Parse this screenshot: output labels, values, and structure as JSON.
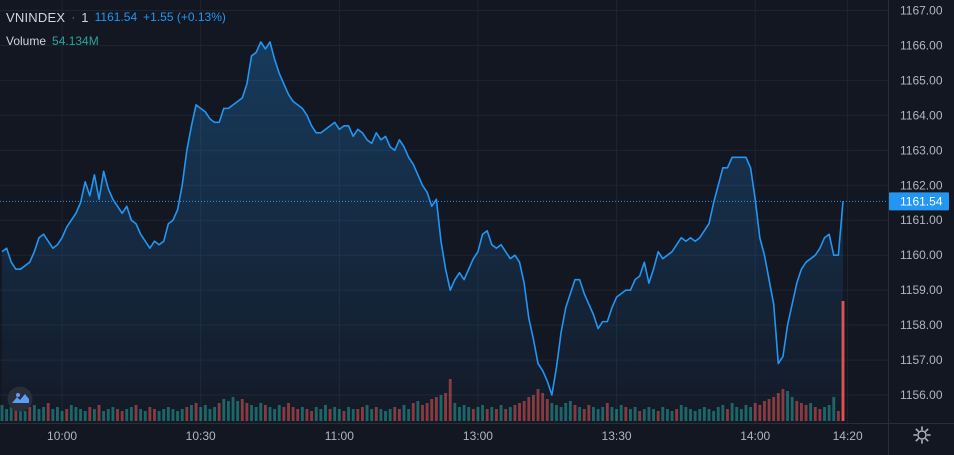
{
  "legend": {
    "symbol": "VNINDEX",
    "dot": "·",
    "interval": "1",
    "last": "1161.54",
    "change": "+1.55 (+0.13%)",
    "volume_label": "Volume",
    "volume_value": "54.134M"
  },
  "colors": {
    "background": "#131722",
    "grid": "#1f2433",
    "line": "#2196f3",
    "up_volume": "#26a69a",
    "down_volume": "#ef5350",
    "axis_text": "#b2b5be",
    "price_tag_bg": "#2196f3"
  },
  "icons": {
    "settings": "gear-icon",
    "logo": "tradingview-logo-icon"
  },
  "chart_data": {
    "type": "line",
    "symbol": "VNINDEX",
    "ylim": [
      1155.2,
      1167.3
    ],
    "y_ticks": [
      "1167.00",
      "1166.00",
      "1165.00",
      "1164.00",
      "1163.00",
      "1162.00",
      "1161.00",
      "1160.00",
      "1159.00",
      "1158.00",
      "1157.00",
      "1156.00"
    ],
    "y_tick_values": [
      1167,
      1166,
      1165,
      1164,
      1163,
      1162,
      1161,
      1160,
      1159,
      1158,
      1157,
      1156
    ],
    "x_ticks": [
      {
        "label": "10:00",
        "index": 13
      },
      {
        "label": "10:30",
        "index": 43
      },
      {
        "label": "11:00",
        "index": 73
      },
      {
        "label": "13:00",
        "index": 103
      },
      {
        "label": "13:30",
        "index": 133
      },
      {
        "label": "14:00",
        "index": 163
      },
      {
        "label": "14:20",
        "index": 183
      }
    ],
    "last_price_label": "1161.54",
    "last_price": 1161.54,
    "grid": true,
    "series": [
      {
        "values": [
          1160.1,
          1160.2,
          1159.8,
          1159.6,
          1159.6,
          1159.7,
          1159.8,
          1160.1,
          1160.5,
          1160.6,
          1160.4,
          1160.2,
          1160.3,
          1160.5,
          1160.8,
          1161.0,
          1161.2,
          1161.5,
          1162.1,
          1161.7,
          1162.3,
          1161.6,
          1162.4,
          1161.9,
          1161.6,
          1161.4,
          1161.2,
          1161.4,
          1161.0,
          1160.9,
          1160.6,
          1160.4,
          1160.2,
          1160.4,
          1160.3,
          1160.4,
          1160.9,
          1161.0,
          1161.3,
          1162.0,
          1163.0,
          1163.7,
          1164.3,
          1164.2,
          1164.1,
          1163.9,
          1163.8,
          1163.8,
          1164.2,
          1164.2,
          1164.3,
          1164.4,
          1164.5,
          1164.9,
          1165.7,
          1165.8,
          1166.1,
          1165.9,
          1166.1,
          1165.6,
          1165.2,
          1164.9,
          1164.6,
          1164.4,
          1164.3,
          1164.2,
          1164.0,
          1163.7,
          1163.5,
          1163.5,
          1163.6,
          1163.7,
          1163.8,
          1163.6,
          1163.7,
          1163.7,
          1163.4,
          1163.6,
          1163.5,
          1163.3,
          1163.2,
          1163.5,
          1163.3,
          1163.4,
          1163.1,
          1163.0,
          1163.3,
          1163.1,
          1162.8,
          1162.6,
          1162.3,
          1162.0,
          1161.8,
          1161.4,
          1161.6,
          1160.4,
          1159.6,
          1159.0,
          1159.3,
          1159.5,
          1159.3,
          1159.6,
          1159.9,
          1160.1,
          1160.6,
          1160.7,
          1160.3,
          1160.2,
          1160.3,
          1160.1,
          1159.9,
          1160.0,
          1159.8,
          1159.2,
          1158.2,
          1157.6,
          1156.9,
          1156.7,
          1156.4,
          1156.0,
          1156.8,
          1157.8,
          1158.5,
          1158.9,
          1159.3,
          1159.3,
          1158.9,
          1158.6,
          1158.3,
          1157.9,
          1158.1,
          1158.1,
          1158.5,
          1158.8,
          1158.9,
          1159.0,
          1159.0,
          1159.3,
          1159.4,
          1159.8,
          1159.2,
          1159.6,
          1160.1,
          1159.9,
          1160.0,
          1160.1,
          1160.3,
          1160.5,
          1160.4,
          1160.5,
          1160.4,
          1160.5,
          1160.7,
          1160.9,
          1161.5,
          1162.0,
          1162.5,
          1162.5,
          1162.8,
          1162.8,
          1162.8,
          1162.8,
          1162.5,
          1161.6,
          1160.5,
          1160.0,
          1159.3,
          1158.6,
          1156.9,
          1157.1,
          1158.0,
          1158.6,
          1159.2,
          1159.6,
          1159.8,
          1159.9,
          1160.0,
          1160.2,
          1160.5,
          1160.6,
          1160.0,
          1160.0,
          1161.54
        ]
      }
    ],
    "volume": {
      "values": [
        0.8,
        0.6,
        0.7,
        0.9,
        0.6,
        0.5,
        0.7,
        0.8,
        0.6,
        0.7,
        0.9,
        0.6,
        0.7,
        0.5,
        0.6,
        0.8,
        0.7,
        0.6,
        0.5,
        0.7,
        0.6,
        0.8,
        0.5,
        0.6,
        0.7,
        0.6,
        0.5,
        0.6,
        0.7,
        0.8,
        0.6,
        0.5,
        0.7,
        0.6,
        0.5,
        0.6,
        0.7,
        0.6,
        0.5,
        0.6,
        0.7,
        0.8,
        0.9,
        0.7,
        0.8,
        0.6,
        0.7,
        0.9,
        1.1,
        1.0,
        1.2,
        1.0,
        1.1,
        0.9,
        0.8,
        0.7,
        0.9,
        0.8,
        0.7,
        0.6,
        0.8,
        0.7,
        0.9,
        0.7,
        0.6,
        0.7,
        0.6,
        0.5,
        0.7,
        0.6,
        0.8,
        0.6,
        0.7,
        0.6,
        0.5,
        0.7,
        0.6,
        0.6,
        0.7,
        0.8,
        0.6,
        0.7,
        0.6,
        0.5,
        0.6,
        0.7,
        0.6,
        0.8,
        0.6,
        0.9,
        1.0,
        0.8,
        0.9,
        1.1,
        1.2,
        1.3,
        1.4,
        2.1,
        0.9,
        0.7,
        0.8,
        0.7,
        0.6,
        0.7,
        0.8,
        0.6,
        0.7,
        0.6,
        0.8,
        0.6,
        0.7,
        0.8,
        0.9,
        1.0,
        1.2,
        1.3,
        1.6,
        1.4,
        1.1,
        0.9,
        0.8,
        0.7,
        0.9,
        1.0,
        0.8,
        0.7,
        0.6,
        0.8,
        0.7,
        0.6,
        0.7,
        0.9,
        0.7,
        0.6,
        0.8,
        0.7,
        0.6,
        0.7,
        0.5,
        0.6,
        0.7,
        0.6,
        0.5,
        0.7,
        0.6,
        0.5,
        0.6,
        0.8,
        0.7,
        0.6,
        0.5,
        0.6,
        0.7,
        0.6,
        0.5,
        0.7,
        0.8,
        0.6,
        0.9,
        0.7,
        0.6,
        0.8,
        0.7,
        0.9,
        0.8,
        1.0,
        1.1,
        1.2,
        1.4,
        1.6,
        1.5,
        1.2,
        1.0,
        0.9,
        0.8,
        0.9,
        0.7,
        0.6,
        0.7,
        0.8,
        1.2,
        0.5,
        6.0
      ],
      "up": [
        1,
        1,
        1,
        0,
        1,
        1,
        0,
        1,
        1,
        1,
        0,
        1,
        1,
        1,
        0,
        1,
        1,
        1,
        1,
        0,
        1,
        0,
        1,
        1,
        1,
        0,
        0,
        1,
        1,
        0,
        1,
        1,
        0,
        0,
        1,
        1,
        1,
        1,
        1,
        1,
        0,
        1,
        0,
        1,
        1,
        1,
        1,
        0,
        1,
        1,
        1,
        1,
        0,
        0,
        1,
        1,
        1,
        0,
        1,
        1,
        1,
        0,
        0,
        0,
        0,
        1,
        0,
        0,
        1,
        1,
        1,
        0,
        1,
        1,
        0,
        1,
        1,
        0,
        0,
        1,
        1,
        0,
        1,
        1,
        1,
        0,
        0,
        1,
        1,
        0,
        1,
        0,
        0,
        0,
        0,
        1,
        0,
        0,
        1,
        1,
        1,
        1,
        0,
        1,
        1,
        0,
        1,
        0,
        1,
        0,
        1,
        0,
        0,
        0,
        0,
        0,
        0,
        0,
        0,
        1,
        1,
        1,
        1,
        1,
        0,
        1,
        0,
        0,
        1,
        1,
        1,
        0,
        1,
        1,
        1,
        0,
        1,
        1,
        0,
        1,
        1,
        1,
        0,
        1,
        1,
        1,
        0,
        1,
        1,
        1,
        1,
        1,
        1,
        1,
        1,
        1,
        1,
        0,
        1,
        1,
        1,
        1,
        1,
        0,
        0,
        0,
        0,
        0,
        0,
        0,
        1,
        1,
        0,
        0,
        0,
        1,
        0,
        0,
        1,
        1,
        1
      ],
      "ymax": 6.5
    }
  }
}
